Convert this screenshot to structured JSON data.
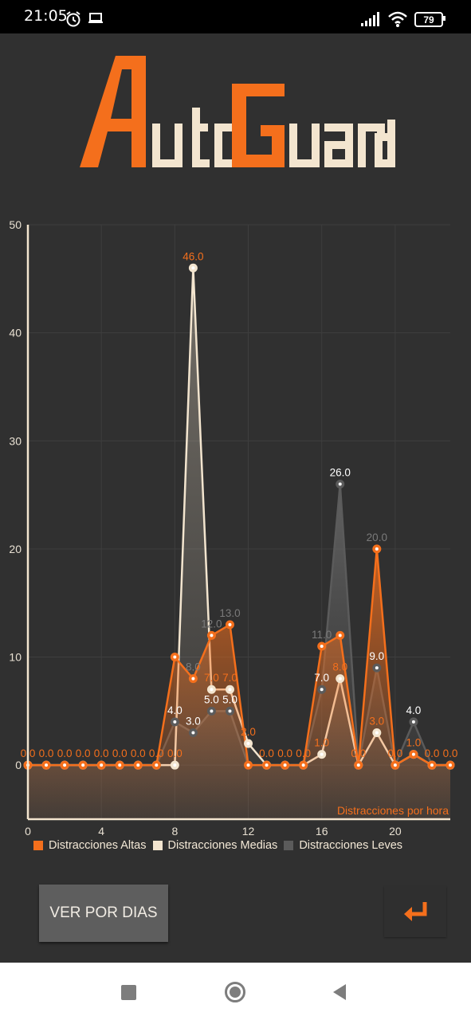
{
  "status_bar": {
    "time": "21:05",
    "battery": "79",
    "icons": [
      "alarm-icon",
      "laptop-icon",
      "signal-icon",
      "wifi-icon",
      "battery-icon"
    ]
  },
  "logo": {
    "text": "AutoGuard",
    "colors": {
      "accent": "#f46f1c",
      "cream": "#f3e5cf"
    }
  },
  "chart_data": {
    "type": "line",
    "x": [
      0,
      1,
      2,
      3,
      4,
      5,
      6,
      7,
      8,
      9,
      10,
      11,
      12,
      13,
      14,
      15,
      16,
      17,
      18,
      19,
      20,
      21,
      22,
      23
    ],
    "x_ticks": [
      "0",
      "4",
      "8",
      "12",
      "16",
      "20"
    ],
    "y_ticks": [
      "0",
      "10",
      "20",
      "30",
      "40",
      "50"
    ],
    "xlim": [
      0,
      23
    ],
    "ylim": [
      -5,
      50
    ],
    "grid": true,
    "description_label": "Distracciones por hora",
    "series": [
      {
        "name": "Distracciones Altas",
        "color": "#f46f1c",
        "values": [
          0,
          0,
          0,
          0,
          0,
          0,
          0,
          0,
          10,
          8,
          12,
          13,
          0,
          0,
          0,
          0,
          11,
          12,
          0,
          20,
          0,
          1,
          0,
          0
        ],
        "labels": [
          "",
          "",
          "",
          "",
          "",
          "",
          "",
          "",
          "",
          "8.0",
          "12.0",
          "13.0",
          "",
          "",
          "",
          "",
          "11.0",
          "",
          "",
          "20.0",
          "",
          "",
          "",
          ""
        ]
      },
      {
        "name": "Distracciones Medias",
        "color": "#f3e5cf",
        "values": [
          0,
          0,
          0,
          0,
          0,
          0,
          0,
          0,
          0,
          46,
          7,
          7,
          2,
          0,
          0,
          0,
          1,
          8,
          0,
          3,
          0,
          1,
          0,
          0
        ],
        "labels": [
          "0.0",
          "0.0",
          "0.0",
          "0.0",
          "0.0",
          "0.0",
          "0.0",
          "0.0",
          "0.0",
          "46.0",
          "7.0",
          "7.0",
          "2.0",
          "0.0",
          "0.0",
          "0.0",
          "1.0",
          "8.0",
          "0.0",
          "3.0",
          "0.0",
          "1.0",
          "0.0",
          "0.0"
        ]
      },
      {
        "name": "Distracciones Leves",
        "color": "#5b5b5b",
        "values": [
          0,
          0,
          0,
          0,
          0,
          0,
          0,
          0,
          4,
          3,
          5,
          5,
          0,
          0,
          0,
          0,
          7,
          26,
          0,
          9,
          0,
          4,
          0,
          0
        ],
        "labels": [
          "",
          "",
          "",
          "",
          "",
          "",
          "",
          "",
          "4.0",
          "3.0",
          "5.0",
          "5.0",
          "",
          "",
          "",
          "",
          "7.0",
          "26.0",
          "",
          "9.0",
          "",
          "4.0",
          "",
          ""
        ]
      }
    ],
    "extra_labels": [
      "10.0",
      "12.0",
      "3.0",
      "2.0",
      "3.0"
    ]
  },
  "buttons": {
    "ver_por_dias": "VER POR DIAS",
    "back_icon": "return-arrow-icon"
  },
  "navbar": {
    "icons": [
      "recent-apps-icon",
      "home-icon",
      "back-icon"
    ]
  }
}
